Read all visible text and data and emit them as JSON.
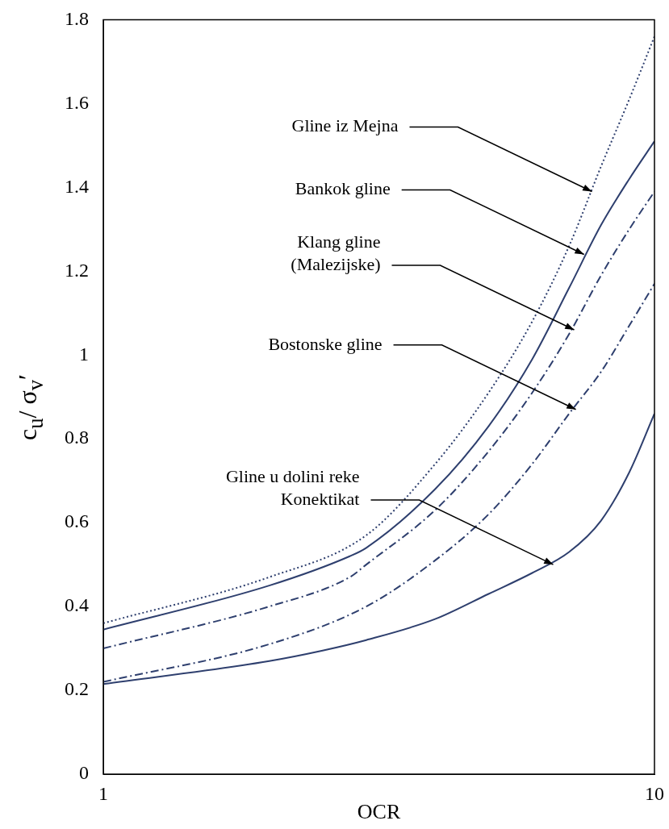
{
  "chart_data": {
    "type": "line",
    "xlabel": "OCR",
    "ylabel": "c$_{u}$/ σ$_{v}$′",
    "log": "x",
    "xlim": [
      1,
      10
    ],
    "xticks": [
      1,
      10
    ],
    "ylim": [
      0,
      1.8
    ],
    "yticks": [
      0,
      0.2,
      0.4,
      0.6,
      0.8,
      1,
      1.2,
      1.4,
      1.6,
      1.8
    ],
    "grid": false,
    "legend": false,
    "marker": "none",
    "series": [
      {
        "color": "#2e3f6e",
        "line_style": "dotted",
        "x": [
          1,
          2,
          3,
          4,
          5,
          6,
          7,
          8,
          9,
          10
        ],
        "values": [
          0.36,
          0.47,
          0.57,
          0.74,
          0.91,
          1.08,
          1.26,
          1.45,
          1.61,
          1.76
        ]
      },
      {
        "color": "#2e3f6e",
        "line_style": "solid",
        "x": [
          1,
          2,
          2.8,
          3,
          4,
          5,
          6,
          7,
          8,
          9,
          10
        ],
        "values": [
          0.345,
          0.45,
          0.52,
          0.54,
          0.68,
          0.83,
          0.99,
          1.16,
          1.31,
          1.42,
          1.51
        ]
      },
      {
        "color": "#2e3f6e",
        "line_style": "dashed",
        "x": [
          1,
          2,
          2.8,
          3,
          4,
          5,
          6,
          7,
          8,
          9,
          10
        ],
        "values": [
          0.3,
          0.4,
          0.47,
          0.5,
          0.63,
          0.77,
          0.91,
          1.05,
          1.19,
          1.3,
          1.39
        ]
      },
      {
        "color": "#2e3f6e",
        "line_style": "dashed",
        "x": [
          1,
          2,
          3,
          4,
          5,
          6,
          7,
          8,
          9,
          10
        ],
        "values": [
          0.22,
          0.31,
          0.4,
          0.51,
          0.62,
          0.74,
          0.86,
          0.96,
          1.07,
          1.17
        ]
      },
      {
        "color": "#2e3f6e",
        "line_style": "solid",
        "x": [
          1,
          2,
          2.5,
          3,
          4,
          5,
          6,
          7,
          8,
          9,
          10
        ],
        "values": [
          0.215,
          0.27,
          0.295,
          0.32,
          0.37,
          0.43,
          0.48,
          0.53,
          0.605,
          0.72,
          0.86
        ]
      }
    ],
    "annotations": [
      {
        "text": "Gline iz Mejna",
        "x": 7.7,
        "y": 1.39
      },
      {
        "text": "Bankok gline",
        "x": 7.45,
        "y": 1.24
      },
      {
        "text": "Klang gline\n(Malezijske)",
        "x": 7.15,
        "y": 1.06
      },
      {
        "text": "Bostonske gline",
        "x": 7.2,
        "y": 0.87
      },
      {
        "text": "Gline u dolini reke\nKonektikat",
        "x": 6.55,
        "y": 0.5
      }
    ]
  }
}
